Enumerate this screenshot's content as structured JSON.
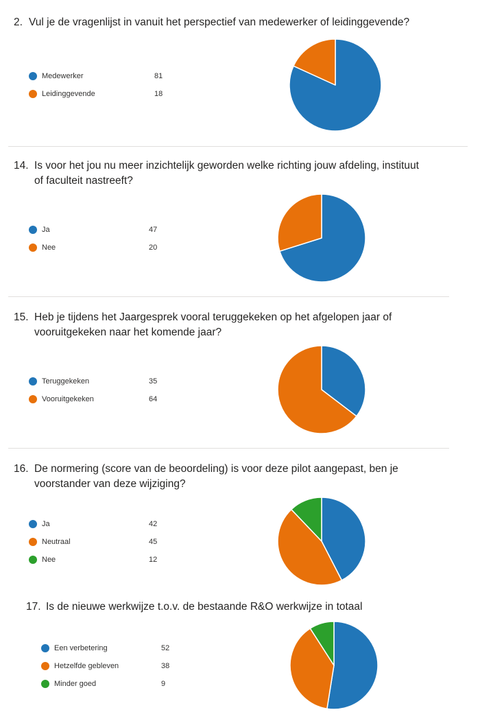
{
  "colors": {
    "blue": "#2176b8",
    "orange": "#e8710a",
    "green": "#2ca02c"
  },
  "chart_data": [
    {
      "type": "pie",
      "number": "2.",
      "title": "Vul je de vragenlijst in vanuit het perspectief van medewerker of leidinggevende?",
      "categories": [
        "Medewerker",
        "Leidinggevende"
      ],
      "values": [
        81,
        18
      ],
      "colors": [
        "#2176b8",
        "#e8710a"
      ]
    },
    {
      "type": "pie",
      "number": "14.",
      "title": "Is voor het jou nu meer inzichtelijk geworden welke richting jouw afdeling, instituut of faculteit nastreeft?",
      "categories": [
        "Ja",
        "Nee"
      ],
      "values": [
        47,
        20
      ],
      "colors": [
        "#2176b8",
        "#e8710a"
      ]
    },
    {
      "type": "pie",
      "number": "15.",
      "title": "Heb je tijdens het Jaargesprek vooral teruggekeken op het afgelopen jaar of vooruitgekeken naar het komende jaar?",
      "categories": [
        "Teruggekeken",
        "Vooruitgekeken"
      ],
      "values": [
        35,
        64
      ],
      "colors": [
        "#2176b8",
        "#e8710a"
      ]
    },
    {
      "type": "pie",
      "number": "16.",
      "title": "De normering (score van de beoordeling) is voor deze pilot aangepast, ben je voorstander van deze wijziging?",
      "categories": [
        "Ja",
        "Neutraal",
        "Nee"
      ],
      "values": [
        42,
        45,
        12
      ],
      "colors": [
        "#2176b8",
        "#e8710a",
        "#2ca02c"
      ]
    },
    {
      "type": "pie",
      "number": "17.",
      "title": "Is de nieuwe werkwijze t.o.v. de bestaande R&O werkwijze in totaal",
      "categories": [
        "Een verbetering",
        "Hetzelfde gebleven",
        "Minder goed"
      ],
      "values": [
        52,
        38,
        9
      ],
      "colors": [
        "#2176b8",
        "#e8710a",
        "#2ca02c"
      ]
    }
  ]
}
